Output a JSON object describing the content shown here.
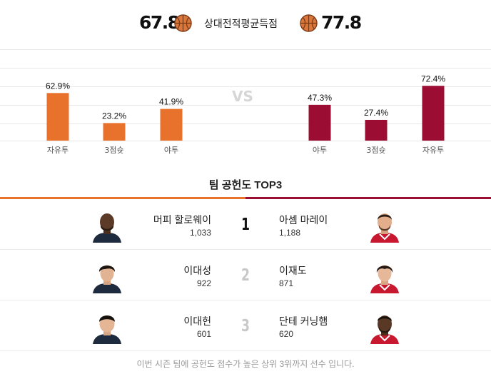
{
  "header": {
    "home_score": "67.8",
    "away_score": "77.8",
    "label": "상대전적평균득점",
    "ball_icon": "basketball-icon"
  },
  "colors": {
    "home": "#e8722c",
    "away": "#9b0d32",
    "grid": "#e8e8e8",
    "vs": "#d6d6d6"
  },
  "chart_data": {
    "type": "bar",
    "vs_label": "VS",
    "ylim": [
      0,
      100
    ],
    "series": [
      {
        "team": "home",
        "categories": [
          "자유투",
          "3점슛",
          "야투"
        ],
        "values": [
          62.9,
          23.2,
          41.9
        ],
        "labels": [
          "62.9%",
          "23.2%",
          "41.9%"
        ]
      },
      {
        "team": "away",
        "categories": [
          "야투",
          "3점슛",
          "자유투"
        ],
        "values": [
          47.3,
          27.4,
          72.4
        ],
        "labels": [
          "47.3%",
          "27.4%",
          "72.4%"
        ]
      }
    ]
  },
  "contribution": {
    "title": "팀 공헌도 TOP3",
    "rows": [
      {
        "rank": "1",
        "home_name": "머피 할로웨이",
        "home_value": "1,033",
        "away_name": "아셈 마레이",
        "away_value": "1,188"
      },
      {
        "rank": "2",
        "home_name": "이대성",
        "home_value": "922",
        "away_name": "이재도",
        "away_value": "871"
      },
      {
        "rank": "3",
        "home_name": "이대헌",
        "home_value": "601",
        "away_name": "단테 커닝햄",
        "away_value": "620"
      }
    ],
    "footnote": "이번 시즌 팀에 공헌도 점수가 높은 상위 3위까지 선수 입니다."
  }
}
